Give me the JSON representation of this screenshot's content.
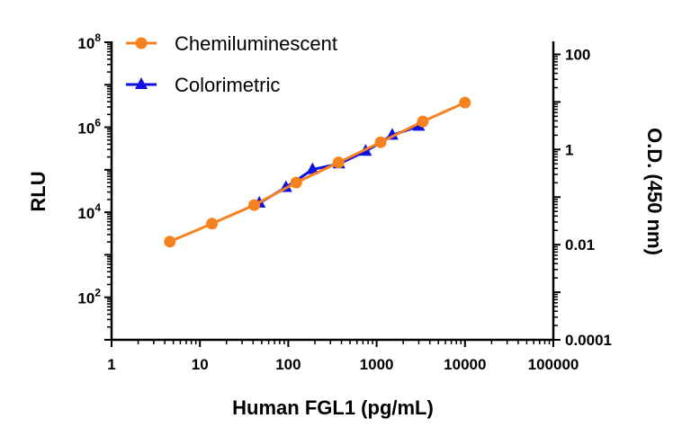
{
  "chart_data": {
    "type": "line",
    "xlabel": "Human FGL1 (pg/mL)",
    "ylabel": "RLU",
    "y2label": "O.D. (450 nm)",
    "xscale": "log",
    "yscale": "log",
    "y2scale": "log",
    "xlim": [
      1,
      100000
    ],
    "ylim": [
      10,
      100000000
    ],
    "y2lim": [
      0.0001,
      180
    ],
    "x_ticks": [
      "1",
      "10",
      "100",
      "1000",
      "10000",
      "100000"
    ],
    "y_ticks": [
      {
        "base": "10",
        "exp": "2"
      },
      {
        "base": "10",
        "exp": "4"
      },
      {
        "base": "10",
        "exp": "6"
      },
      {
        "base": "10",
        "exp": "8"
      }
    ],
    "y2_ticks": [
      "0.0001",
      "0.01",
      "1",
      "100"
    ],
    "grid": false,
    "legend": "top-left",
    "series": [
      {
        "name": "Chemiluminescent",
        "axis": "left",
        "color": "#F5821F",
        "marker": "circle",
        "x": [
          4.57,
          13.7,
          41.2,
          123,
          370,
          1111,
          3333,
          10000
        ],
        "y": [
          2040,
          5400,
          14800,
          50000,
          148000,
          445000,
          1370000,
          3800000
        ]
      },
      {
        "name": "Colorimetric",
        "axis": "right",
        "color": "#1010E0",
        "marker": "triangle",
        "x": [
          47,
          94,
          188,
          375,
          750,
          1500,
          3000
        ],
        "y": [
          0.075,
          0.16,
          0.38,
          0.5,
          0.92,
          2.0,
          3.1
        ]
      }
    ]
  }
}
